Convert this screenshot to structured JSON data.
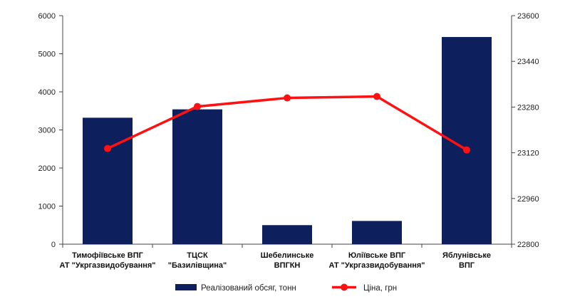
{
  "chart_data": {
    "type": "bar",
    "categories": [
      [
        "Тимофіївське ВПГ",
        "АТ \"Укргазвидобування\""
      ],
      [
        "ТЦСК",
        "\"Базилівщина\""
      ],
      [
        "Шебелинське",
        "ВПГКН"
      ],
      [
        "Юліївське ВПГ",
        "АТ \"Укргазвидобування\""
      ],
      [
        "Яблунівське",
        "ВПГ"
      ]
    ],
    "series": [
      {
        "name": "Реалізований обсяг, тонн",
        "type": "bar",
        "axis": "left",
        "color": "#0d1f5c",
        "values": [
          3320,
          3540,
          500,
          610,
          5440
        ]
      },
      {
        "name": "Ціна, грн",
        "type": "line",
        "axis": "right",
        "color": "#ff1111",
        "values": [
          23135,
          23282,
          23312,
          23317,
          23130
        ]
      }
    ],
    "y_left": {
      "min": 0,
      "max": 6000,
      "ticks": [
        0,
        1000,
        2000,
        3000,
        4000,
        5000,
        6000
      ]
    },
    "y_right": {
      "min": 22800,
      "max": 23600,
      "ticks": [
        22800,
        22960,
        23120,
        23280,
        23440,
        23600
      ]
    },
    "grid": false,
    "legend": "bottom"
  }
}
